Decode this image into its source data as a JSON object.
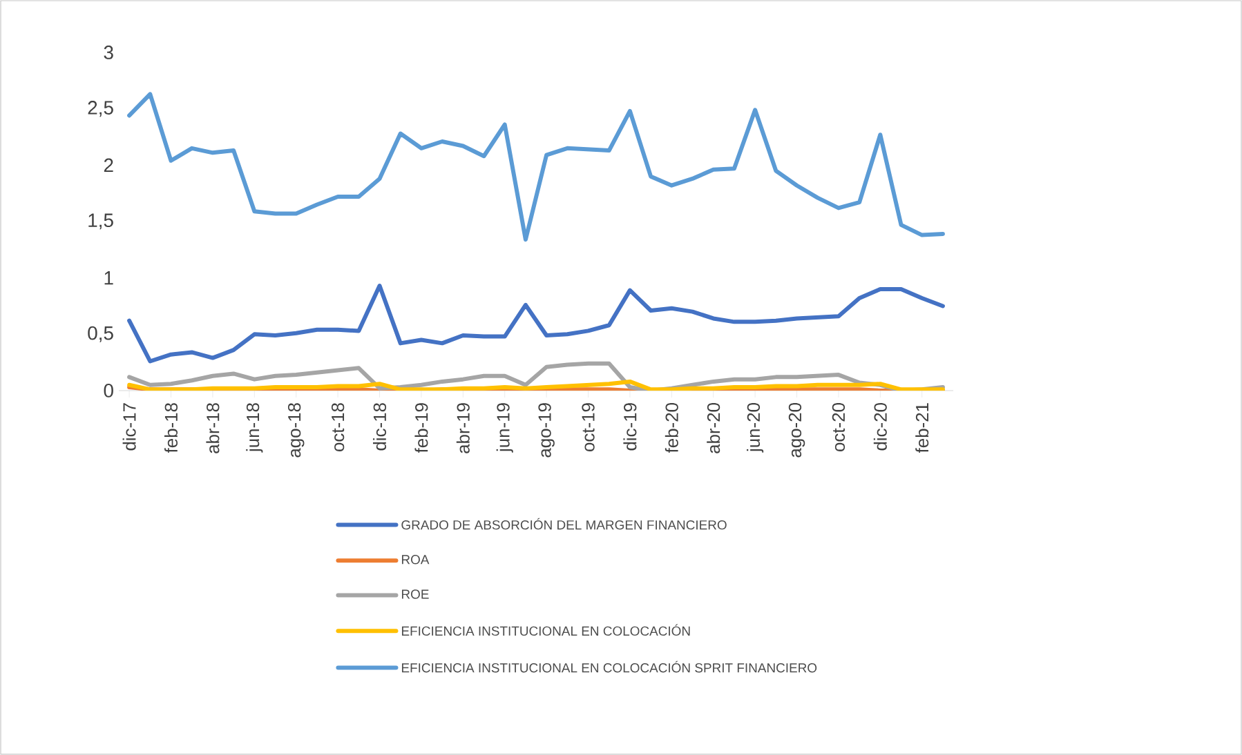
{
  "chart_data": {
    "type": "line",
    "categories": [
      "dic-17",
      null,
      "feb-18",
      null,
      "abr-18",
      null,
      "jun-18",
      null,
      "ago-18",
      null,
      "oct-18",
      null,
      "dic-18",
      null,
      "feb-19",
      null,
      "abr-19",
      null,
      "jun-19",
      null,
      "ago-19",
      null,
      "oct-19",
      null,
      "dic-19",
      null,
      "feb-20",
      null,
      "abr-20",
      null,
      "jun-20",
      null,
      "ago-20",
      null,
      "oct-20",
      null,
      "dic-20",
      null,
      "feb-21",
      null
    ],
    "series": [
      {
        "name": "GRADO DE ABSORCIÓN DEL MARGEN FINANCIERO",
        "color": "#4472c4",
        "values": [
          0.62,
          0.26,
          0.32,
          0.34,
          0.29,
          0.36,
          0.5,
          0.49,
          0.51,
          0.54,
          0.54,
          0.53,
          0.93,
          0.42,
          0.45,
          0.42,
          0.49,
          0.48,
          0.48,
          0.76,
          0.49,
          0.5,
          0.53,
          0.58,
          0.89,
          0.71,
          0.73,
          0.7,
          0.64,
          0.61,
          0.61,
          0.62,
          0.64,
          0.65,
          0.66,
          0.82,
          0.9,
          0.9,
          0.82,
          0.75
        ]
      },
      {
        "name": "ROA",
        "color": "#ed7d31",
        "values": [
          0.03,
          0.01,
          0.01,
          0.01,
          0.01,
          0.01,
          0.01,
          0.01,
          0.01,
          0.01,
          0.01,
          0.01,
          0.0,
          0.0,
          0.0,
          0.01,
          0.01,
          0.01,
          0.01,
          0.0,
          0.01,
          0.01,
          0.01,
          0.01,
          0.0,
          0.0,
          0.0,
          0.01,
          0.01,
          0.01,
          0.01,
          0.01,
          0.01,
          0.01,
          0.01,
          0.01,
          0.0,
          0.0,
          0.0,
          0.0
        ]
      },
      {
        "name": "ROE",
        "color": "#a5a5a5",
        "values": [
          0.12,
          0.05,
          0.06,
          0.09,
          0.13,
          0.15,
          0.1,
          0.13,
          0.14,
          0.16,
          0.18,
          0.2,
          0.02,
          0.03,
          0.05,
          0.08,
          0.1,
          0.13,
          0.13,
          0.05,
          0.21,
          0.23,
          0.24,
          0.24,
          0.03,
          0.0,
          0.02,
          0.05,
          0.08,
          0.1,
          0.1,
          0.12,
          0.12,
          0.13,
          0.14,
          0.07,
          0.05,
          0.0,
          0.01,
          0.03
        ]
      },
      {
        "name": "EFICIENCIA INSTITUCIONAL EN COLOCACIÓN",
        "color": "#ffc000",
        "values": [
          0.05,
          0.01,
          0.01,
          0.01,
          0.02,
          0.02,
          0.02,
          0.03,
          0.03,
          0.03,
          0.04,
          0.04,
          0.06,
          0.01,
          0.01,
          0.01,
          0.02,
          0.02,
          0.03,
          0.02,
          0.03,
          0.04,
          0.05,
          0.06,
          0.08,
          0.01,
          0.01,
          0.02,
          0.02,
          0.03,
          0.03,
          0.04,
          0.04,
          0.05,
          0.05,
          0.05,
          0.06,
          0.01,
          0.01,
          0.01
        ]
      },
      {
        "name": "EFICIENCIA INSTITUCIONAL EN COLOCACIÓN SPRIT FINANCIERO",
        "color": "#5b9bd5",
        "values": [
          2.44,
          2.63,
          2.04,
          2.15,
          2.11,
          2.13,
          1.59,
          1.57,
          1.57,
          1.65,
          1.72,
          1.72,
          1.88,
          2.28,
          2.15,
          2.21,
          2.17,
          2.08,
          2.36,
          1.34,
          2.09,
          2.15,
          2.14,
          2.13,
          2.48,
          1.9,
          1.82,
          1.88,
          1.96,
          1.97,
          2.49,
          1.95,
          1.82,
          1.71,
          1.62,
          1.67,
          2.27,
          1.47,
          1.38,
          1.39
        ]
      }
    ],
    "ylim": [
      0,
      3
    ],
    "yticks": [
      {
        "value": 0,
        "label": "0"
      },
      {
        "value": 0.5,
        "label": "0,5"
      },
      {
        "value": 1,
        "label": "1"
      },
      {
        "value": 1.5,
        "label": "1,5"
      },
      {
        "value": 2,
        "label": "2"
      },
      {
        "value": 2.5,
        "label": "2,5"
      },
      {
        "value": 3,
        "label": "3"
      }
    ],
    "grid": false,
    "legend": "bottom",
    "marker": "none",
    "line_style": "solid"
  }
}
